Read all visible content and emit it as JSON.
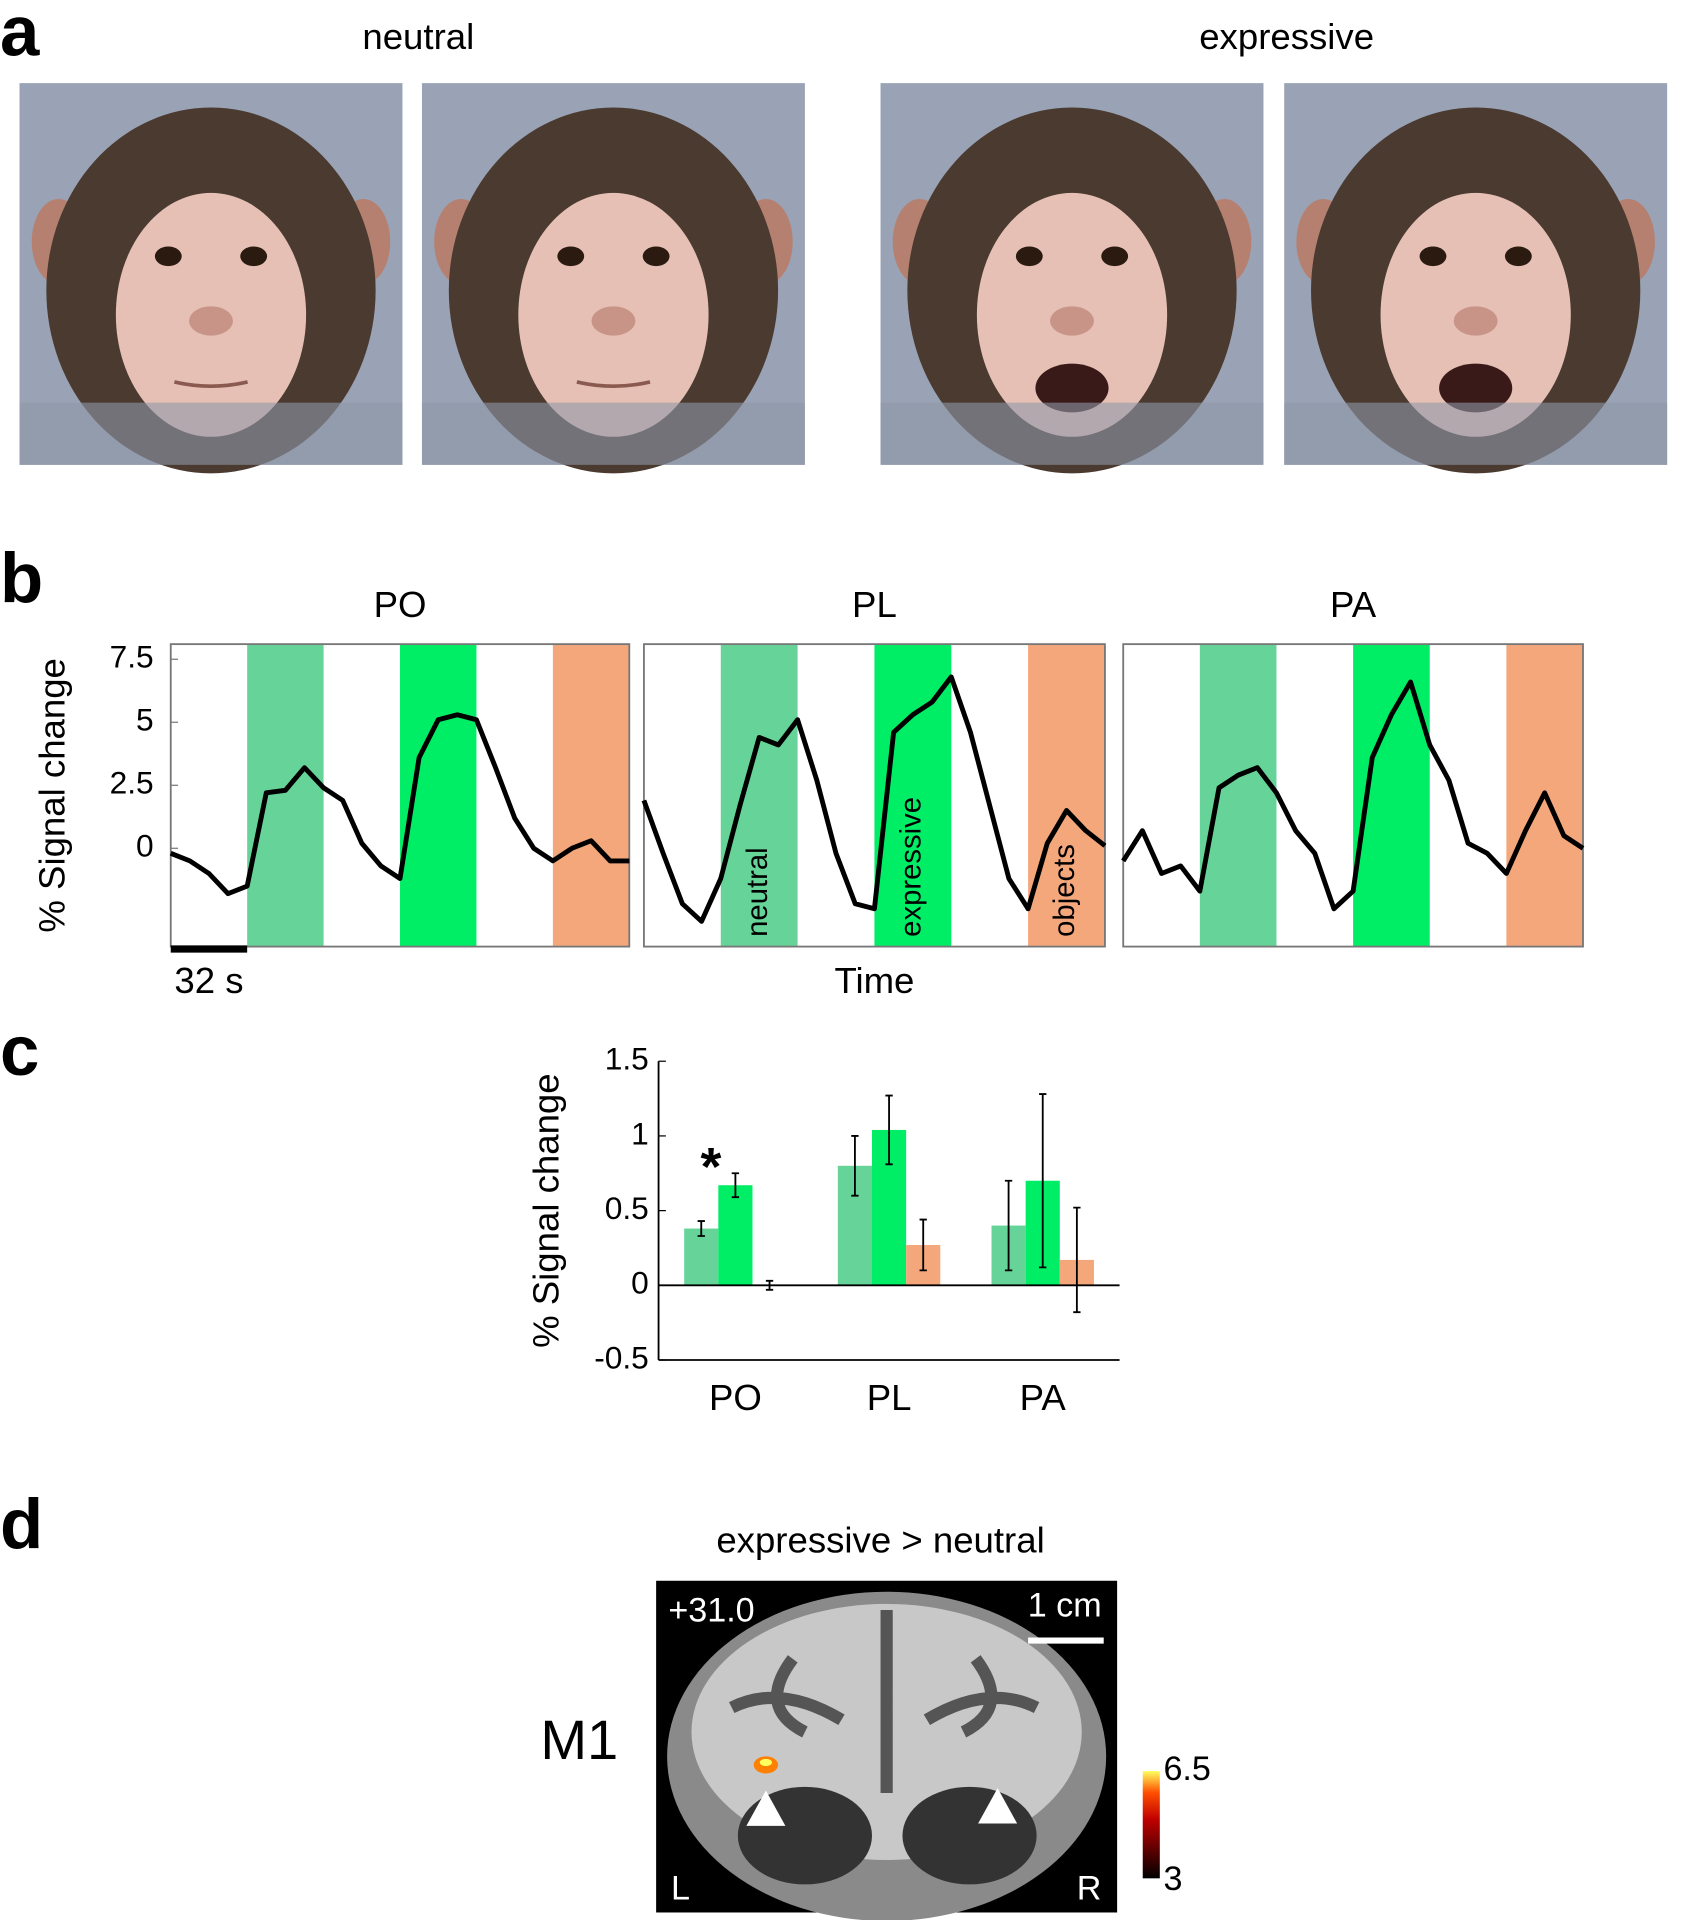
{
  "panel_labels": [
    "a",
    "b",
    "c",
    "d"
  ],
  "panel_a": {
    "neutral_label": "neutral",
    "expressive_label": "expressive"
  },
  "chart_data": [
    {
      "type": "line",
      "title": "PO",
      "y_label": "% Signal change",
      "scalebar": {
        "label": "32 s",
        "length": 32
      },
      "x": [
        0,
        8,
        16,
        24,
        32,
        40,
        48,
        56,
        64,
        72,
        80,
        88,
        96,
        104,
        112,
        120,
        128,
        136,
        144,
        152,
        160,
        168,
        176,
        184,
        192
      ],
      "series": [
        {
          "color": "#000000",
          "values": [
            -0.2,
            -0.5,
            -1.0,
            -1.8,
            -1.5,
            2.2,
            2.3,
            3.2,
            2.4,
            1.9,
            0.2,
            -0.7,
            -1.2,
            3.6,
            5.1,
            5.3,
            5.1,
            3.2,
            1.2,
            0,
            -0.5,
            0,
            0.3,
            -0.5,
            -0.5
          ]
        }
      ],
      "blocks": [
        {
          "start": 32,
          "end": 64,
          "color": "#66d498"
        },
        {
          "start": 96,
          "end": 128,
          "color": "#00ee66"
        },
        {
          "start": 160,
          "end": 192,
          "color": "#f5a77c"
        }
      ],
      "xlim": [
        0,
        192
      ],
      "ylim": [
        -3.9,
        8.1
      ],
      "yticks": [
        0,
        2.5,
        5,
        7.5
      ]
    },
    {
      "type": "line",
      "title": "PL",
      "x_label": "Time",
      "x": [
        0,
        8,
        16,
        24,
        32,
        40,
        48,
        56,
        64,
        72,
        80,
        88,
        96,
        104,
        112,
        120,
        128,
        136,
        144,
        152,
        160,
        168,
        176,
        184,
        192
      ],
      "series": [
        {
          "color": "#000000",
          "values": [
            1.9,
            -0.2,
            -2.2,
            -2.9,
            -1.2,
            1.7,
            4.4,
            4.1,
            5.1,
            2.7,
            -0.2,
            -2.2,
            -2.4,
            4.6,
            5.3,
            5.8,
            6.8,
            4.6,
            1.7,
            -1.2,
            -2.4,
            0.2,
            1.5,
            0.7,
            0.1
          ]
        }
      ],
      "blocks": [
        {
          "name": "neutral",
          "start": 32,
          "end": 64,
          "color": "#66d498"
        },
        {
          "name": "expressive",
          "start": 96,
          "end": 128,
          "color": "#00ee66"
        },
        {
          "name": "objects",
          "start": 160,
          "end": 192,
          "color": "#f5a77c"
        }
      ],
      "xlim": [
        0,
        192
      ],
      "ylim": [
        -3.9,
        8.1
      ]
    },
    {
      "type": "line",
      "title": "PA",
      "x": [
        0,
        8,
        16,
        24,
        32,
        40,
        48,
        56,
        64,
        72,
        80,
        88,
        96,
        104,
        112,
        120,
        128,
        136,
        144,
        152,
        160,
        168,
        176,
        184,
        192
      ],
      "series": [
        {
          "color": "#000000",
          "values": [
            -0.5,
            0.7,
            -1.0,
            -0.7,
            -1.7,
            2.4,
            2.9,
            3.2,
            2.2,
            0.7,
            -0.2,
            -2.4,
            -1.7,
            3.6,
            5.3,
            6.6,
            4.1,
            2.7,
            0.2,
            -0.2,
            -1.0,
            0.7,
            2.2,
            0.5,
            0
          ]
        }
      ],
      "blocks": [
        {
          "start": 32,
          "end": 64,
          "color": "#66d498"
        },
        {
          "start": 96,
          "end": 128,
          "color": "#00ee66"
        },
        {
          "start": 160,
          "end": 192,
          "color": "#f5a77c"
        }
      ],
      "xlim": [
        0,
        192
      ],
      "ylim": [
        -3.9,
        8.1
      ]
    },
    {
      "type": "bar",
      "y_label": "% Signal change",
      "annotation": "*",
      "categories": [
        "PO",
        "PL",
        "PA"
      ],
      "series": [
        {
          "color": "#66d498",
          "values": [
            0.38,
            0.8,
            0.4
          ],
          "errors": [
            0.05,
            0.2,
            0.3
          ]
        },
        {
          "color": "#00ee66",
          "values": [
            0.67,
            1.04,
            0.7
          ],
          "errors": [
            0.08,
            0.23,
            0.58
          ]
        },
        {
          "color": "#f5a77c",
          "values": [
            0,
            0.27,
            0.17
          ],
          "errors": [
            0.03,
            0.17,
            0.35
          ]
        }
      ],
      "ylim": [
        -0.5,
        1.5
      ],
      "yticks": [
        -0.5,
        0,
        0.5,
        1,
        1.5
      ]
    }
  ],
  "panel_d": {
    "title": "expressive > neutral",
    "slice": "+31.0",
    "scale": "1 cm",
    "row_label": "M1",
    "left": "L",
    "right": "R",
    "colorbar": {
      "min": 3,
      "max": 6.5
    }
  }
}
